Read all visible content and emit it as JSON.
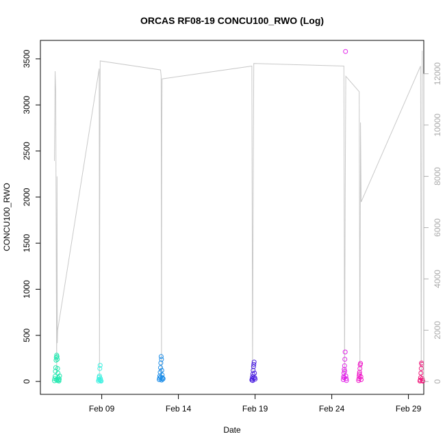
{
  "chart_data": {
    "type": "scatter",
    "title": "ORCAS RF08-19 CONCU100_RWO (Log)",
    "xlabel": "Date",
    "ylabel": "CONCU100_RWO",
    "x_axis": {
      "type": "date",
      "range": [
        "2016-02-05",
        "2016-03-01"
      ],
      "ticks": [
        {
          "date": "2016-02-09",
          "label": "Feb 09"
        },
        {
          "date": "2016-02-14",
          "label": "Feb 14"
        },
        {
          "date": "2016-02-19",
          "label": "Feb 19"
        },
        {
          "date": "2016-02-24",
          "label": "Feb 24"
        },
        {
          "date": "2016-02-29",
          "label": "Feb 29"
        }
      ]
    },
    "y_left": {
      "range": [
        -140,
        3700
      ],
      "ticks": [
        0,
        500,
        1000,
        1500,
        2000,
        2500,
        3000,
        3500
      ]
    },
    "y_right": {
      "range": [
        -500,
        13300
      ],
      "ticks": [
        0,
        2000,
        4000,
        6000,
        8000,
        10000,
        12000
      ],
      "color": "#b0b0b0"
    },
    "series": [
      {
        "color": "#22e8b0",
        "points": [
          {
            "x": "2016-02-05 22:00",
            "y": 8
          },
          {
            "x": "2016-02-05 22:30",
            "y": 30
          },
          {
            "x": "2016-02-05 23:00",
            "y": 55
          },
          {
            "x": "2016-02-05 23:30",
            "y": 110
          },
          {
            "x": "2016-02-06 00:00",
            "y": 150
          },
          {
            "x": "2016-02-06 00:30",
            "y": 230
          },
          {
            "x": "2016-02-06 01:00",
            "y": 260
          },
          {
            "x": "2016-02-06 01:30",
            "y": 285
          },
          {
            "x": "2016-02-06 02:00",
            "y": 270
          },
          {
            "x": "2016-02-06 02:30",
            "y": 240
          },
          {
            "x": "2016-02-06 03:00",
            "y": 140
          },
          {
            "x": "2016-02-06 03:30",
            "y": 90
          },
          {
            "x": "2016-02-06 04:00",
            "y": 40
          },
          {
            "x": "2016-02-06 04:30",
            "y": 15
          },
          {
            "x": "2016-02-06 05:00",
            "y": 5
          },
          {
            "x": "2016-02-06 05:30",
            "y": 25
          },
          {
            "x": "2016-02-06 06:00",
            "y": 60
          },
          {
            "x": "2016-02-06 01:15",
            "y": 20
          },
          {
            "x": "2016-02-06 02:15",
            "y": 10
          }
        ]
      },
      {
        "color": "#3ef0e0",
        "points": [
          {
            "x": "2016-02-08 19:00",
            "y": 5
          },
          {
            "x": "2016-02-08 19:30",
            "y": 20
          },
          {
            "x": "2016-02-08 20:00",
            "y": 45
          },
          {
            "x": "2016-02-08 20:30",
            "y": 60
          },
          {
            "x": "2016-02-08 21:00",
            "y": 140
          },
          {
            "x": "2016-02-08 21:30",
            "y": 175
          },
          {
            "x": "2016-02-08 22:00",
            "y": 30
          },
          {
            "x": "2016-02-08 22:30",
            "y": 10
          },
          {
            "x": "2016-02-08 23:00",
            "y": 3
          },
          {
            "x": "2016-02-08 21:15",
            "y": 15
          }
        ]
      },
      {
        "color": "#1a8ce8",
        "points": [
          {
            "x": "2016-02-12 18:00",
            "y": 20
          },
          {
            "x": "2016-02-12 18:30",
            "y": 35
          },
          {
            "x": "2016-02-12 19:00",
            "y": 60
          },
          {
            "x": "2016-02-12 19:30",
            "y": 100
          },
          {
            "x": "2016-02-12 20:00",
            "y": 150
          },
          {
            "x": "2016-02-12 20:30",
            "y": 200
          },
          {
            "x": "2016-02-12 21:00",
            "y": 270
          },
          {
            "x": "2016-02-12 21:30",
            "y": 240
          },
          {
            "x": "2016-02-12 22:00",
            "y": 120
          },
          {
            "x": "2016-02-12 22:30",
            "y": 70
          },
          {
            "x": "2016-02-12 23:00",
            "y": 40
          },
          {
            "x": "2016-02-12 23:30",
            "y": 25
          },
          {
            "x": "2016-02-13 00:00",
            "y": 30
          },
          {
            "x": "2016-02-12 20:15",
            "y": 45
          },
          {
            "x": "2016-02-12 21:45",
            "y": 15
          }
        ]
      },
      {
        "color": "#4a1ee0",
        "points": [
          {
            "x": "2016-02-18 19:00",
            "y": 15
          },
          {
            "x": "2016-02-18 19:30",
            "y": 30
          },
          {
            "x": "2016-02-18 20:00",
            "y": 50
          },
          {
            "x": "2016-02-18 20:30",
            "y": 80
          },
          {
            "x": "2016-02-18 21:00",
            "y": 120
          },
          {
            "x": "2016-02-18 21:30",
            "y": 160
          },
          {
            "x": "2016-02-18 22:00",
            "y": 185
          },
          {
            "x": "2016-02-18 22:30",
            "y": 210
          },
          {
            "x": "2016-02-18 23:00",
            "y": 90
          },
          {
            "x": "2016-02-18 23:30",
            "y": 40
          },
          {
            "x": "2016-02-19 00:00",
            "y": 25
          },
          {
            "x": "2016-02-18 20:15",
            "y": 10
          },
          {
            "x": "2016-02-18 21:45",
            "y": 35
          }
        ]
      },
      {
        "color": "#e020e8",
        "points": [
          {
            "x": "2016-02-24 18:00",
            "y": 20
          },
          {
            "x": "2016-02-24 18:30",
            "y": 50
          },
          {
            "x": "2016-02-24 19:00",
            "y": 90
          },
          {
            "x": "2016-02-24 19:30",
            "y": 130
          },
          {
            "x": "2016-02-24 20:00",
            "y": 170
          },
          {
            "x": "2016-02-24 20:30",
            "y": 240
          },
          {
            "x": "2016-02-24 21:00",
            "y": 320
          },
          {
            "x": "2016-02-24 21:30",
            "y": 3580
          },
          {
            "x": "2016-02-24 22:00",
            "y": 60
          },
          {
            "x": "2016-02-24 22:30",
            "y": 30
          },
          {
            "x": "2016-02-24 23:00",
            "y": 10
          },
          {
            "x": "2016-02-24 19:15",
            "y": 40
          },
          {
            "x": "2016-02-24 20:15",
            "y": 110
          }
        ]
      },
      {
        "color": "#f014c8",
        "points": [
          {
            "x": "2016-02-25 18:00",
            "y": 10
          },
          {
            "x": "2016-02-25 18:30",
            "y": 30
          },
          {
            "x": "2016-02-25 19:00",
            "y": 60
          },
          {
            "x": "2016-02-25 19:30",
            "y": 100
          },
          {
            "x": "2016-02-25 20:00",
            "y": 140
          },
          {
            "x": "2016-02-25 20:30",
            "y": 180
          },
          {
            "x": "2016-02-25 21:00",
            "y": 195
          },
          {
            "x": "2016-02-25 21:30",
            "y": 50
          },
          {
            "x": "2016-02-25 22:00",
            "y": 20
          },
          {
            "x": "2016-02-25 19:15",
            "y": 80
          }
        ]
      },
      {
        "color": "#f01478",
        "points": [
          {
            "x": "2016-02-29 18:00",
            "y": 5
          },
          {
            "x": "2016-02-29 18:30",
            "y": 15
          },
          {
            "x": "2016-02-29 19:00",
            "y": 40
          },
          {
            "x": "2016-02-29 19:30",
            "y": 90
          },
          {
            "x": "2016-02-29 20:00",
            "y": 140
          },
          {
            "x": "2016-02-29 20:30",
            "y": 200
          },
          {
            "x": "2016-02-29 21:00",
            "y": 185
          },
          {
            "x": "2016-02-29 21:30",
            "y": 30
          },
          {
            "x": "2016-02-29 22:00",
            "y": 10
          },
          {
            "x": "2016-02-29 22:30",
            "y": 3
          }
        ]
      }
    ],
    "right_axis_line": {
      "color": "#c8c8c8",
      "points": [
        {
          "x": "2016-02-05 22:00",
          "y": 8600
        },
        {
          "x": "2016-02-05 23:00",
          "y": 12100
        },
        {
          "x": "2016-02-06 00:00",
          "y": 11300
        },
        {
          "x": "2016-02-06 01:00",
          "y": 3800
        },
        {
          "x": "2016-02-06 01:30",
          "y": 300
        },
        {
          "x": "2016-02-06 02:00",
          "y": 8000
        },
        {
          "x": "2016-02-06 02:30",
          "y": 1500
        },
        {
          "x": "2016-02-06 03:00",
          "y": 2000
        },
        {
          "x": "2016-02-08 20:00",
          "y": 12200
        },
        {
          "x": "2016-02-08 20:30",
          "y": 100
        },
        {
          "x": "2016-02-08 21:00",
          "y": 8600
        },
        {
          "x": "2016-02-08 21:30",
          "y": 12500
        },
        {
          "x": "2016-02-12 20:00",
          "y": 12150
        },
        {
          "x": "2016-02-12 21:00",
          "y": 11900
        },
        {
          "x": "2016-02-12 21:30",
          "y": 100
        },
        {
          "x": "2016-02-12 22:00",
          "y": 9500
        },
        {
          "x": "2016-02-12 22:30",
          "y": 11800
        },
        {
          "x": "2016-02-18 19:00",
          "y": 12300
        },
        {
          "x": "2016-02-18 20:00",
          "y": 200
        },
        {
          "x": "2016-02-18 21:00",
          "y": 7100
        },
        {
          "x": "2016-02-18 22:00",
          "y": 12400
        },
        {
          "x": "2016-02-24 19:00",
          "y": 12300
        },
        {
          "x": "2016-02-24 20:00",
          "y": 200
        },
        {
          "x": "2016-02-24 21:00",
          "y": 7100
        },
        {
          "x": "2016-02-24 22:00",
          "y": 11900
        },
        {
          "x": "2016-02-25 19:00",
          "y": 11300
        },
        {
          "x": "2016-02-25 20:00",
          "y": 200
        },
        {
          "x": "2016-02-25 21:00",
          "y": 10100
        },
        {
          "x": "2016-02-25 22:00",
          "y": 7000
        },
        {
          "x": "2016-02-29 19:00",
          "y": 12300
        },
        {
          "x": "2016-02-29 20:00",
          "y": 200
        },
        {
          "x": "2016-02-29 21:00",
          "y": 8800
        },
        {
          "x": "2016-02-29 21:30",
          "y": 12900
        }
      ]
    },
    "grid": false,
    "legend": "none"
  }
}
